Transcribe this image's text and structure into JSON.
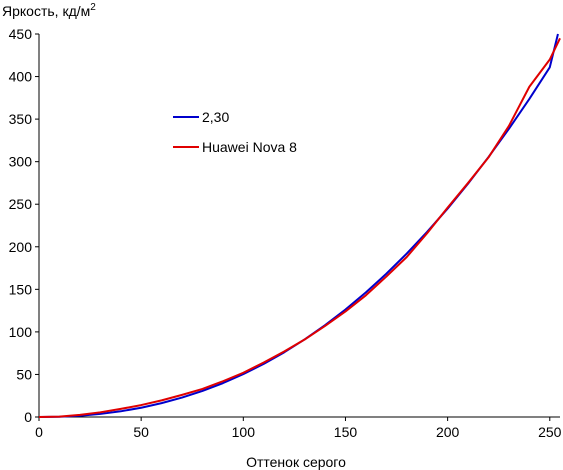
{
  "chart_data": {
    "type": "line",
    "ylabel": "Яркость, кд/м",
    "ylabel_sup": "2",
    "xlabel": "Оттенок серого",
    "xlim": [
      0,
      255
    ],
    "ylim": [
      0,
      450
    ],
    "x_ticks": [
      0,
      50,
      100,
      150,
      200,
      250
    ],
    "y_ticks": [
      0,
      50,
      100,
      150,
      200,
      250,
      300,
      350,
      400,
      450
    ],
    "grid": false,
    "legend_position": "left-middle",
    "series": [
      {
        "name": "2,30",
        "color": "#0000cc",
        "x": [
          0,
          10,
          20,
          30,
          40,
          50,
          60,
          70,
          80,
          90,
          100,
          110,
          120,
          130,
          140,
          150,
          160,
          170,
          180,
          190,
          200,
          210,
          220,
          230,
          240,
          250,
          254
        ],
        "y": [
          0,
          0.3,
          1.4,
          3.6,
          6.7,
          10.9,
          16.3,
          22.8,
          30.6,
          39.8,
          50.4,
          62.4,
          76.0,
          91.1,
          107.9,
          126.3,
          146.4,
          168.3,
          192.0,
          217.6,
          244.9,
          274.2,
          305.4,
          338.6,
          373.7,
          410.9,
          450
        ]
      },
      {
        "name": "Huawei Nova 8",
        "color": "#e00000",
        "x": [
          0,
          10,
          20,
          30,
          40,
          50,
          60,
          70,
          80,
          90,
          100,
          110,
          120,
          130,
          140,
          150,
          160,
          170,
          180,
          190,
          200,
          210,
          220,
          230,
          240,
          250,
          255
        ],
        "y": [
          0,
          0.5,
          2.5,
          5.5,
          9.5,
          14,
          19.5,
          26,
          33,
          42,
          52,
          64,
          77,
          91,
          107,
          124,
          143,
          165,
          188,
          216,
          246,
          275,
          305,
          342,
          388,
          420,
          445
        ]
      }
    ]
  }
}
